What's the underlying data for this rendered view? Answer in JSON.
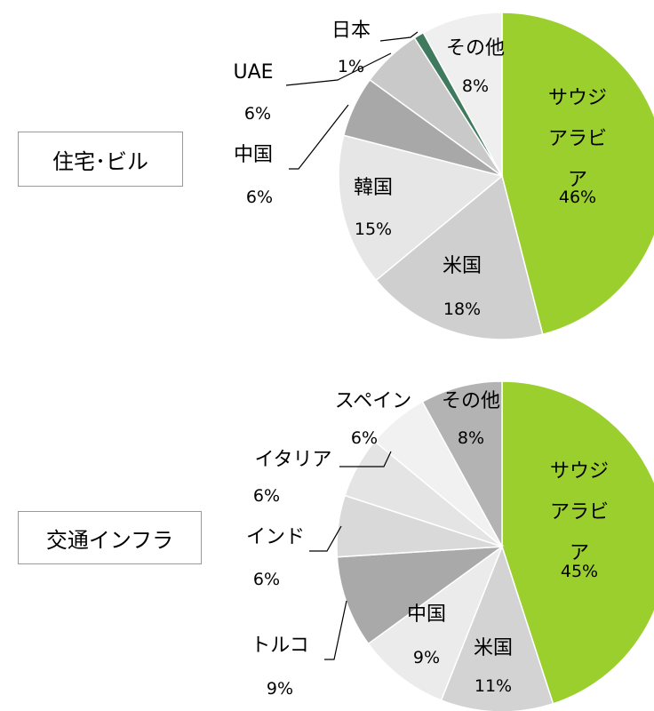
{
  "chart_data": [
    {
      "type": "pie",
      "title": "住宅･ビル",
      "categories": [
        "サウジ\nアラビア",
        "米国",
        "韓国",
        "中国",
        "UAE",
        "日本",
        "その他"
      ],
      "values": [
        46,
        18,
        15,
        6,
        6,
        1,
        8
      ],
      "value_labels": [
        "46%",
        "18%",
        "15%",
        "6%",
        "6%",
        "1%",
        "8%"
      ],
      "colors": [
        "#9bcf2e",
        "#cfcfcf",
        "#e6e6e6",
        "#a8a8a8",
        "#c9c9c9",
        "#3f7a5f",
        "#efefef"
      ]
    },
    {
      "type": "pie",
      "title": "交通インフラ",
      "categories": [
        "サウジ\nアラビア",
        "米国",
        "中国",
        "トルコ",
        "インド",
        "イタリア",
        "スペイン",
        "その他"
      ],
      "values": [
        45,
        11,
        9,
        9,
        6,
        6,
        6,
        8
      ],
      "value_labels": [
        "45%",
        "11%",
        "9%",
        "9%",
        "6%",
        "6%",
        "6%",
        "8%"
      ],
      "colors": [
        "#9bcf2e",
        "#d3d3d3",
        "#ebebeb",
        "#a9a9a9",
        "#d9d9d9",
        "#e4e4e4",
        "#f1f1f1",
        "#b3b3b3"
      ]
    }
  ]
}
